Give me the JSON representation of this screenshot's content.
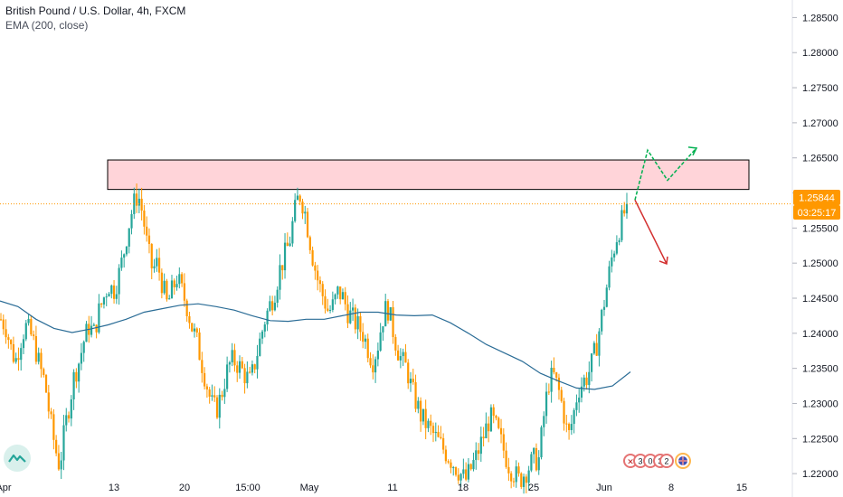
{
  "header": {
    "symbol_title": "British Pound / U.S. Dollar, 4h, FXCM",
    "indicator": "EMA (200, close)"
  },
  "badges": {
    "price": "1.25844",
    "countdown": "03:25:17"
  },
  "events": [
    "3",
    "0",
    "3",
    "2"
  ],
  "colors": {
    "up": "#26a69a",
    "down": "#ff9800",
    "ema": "#2a6c96",
    "zone_fill": "#ffcdd2",
    "price_line": "#ff9800",
    "badge": "#ff9800",
    "green_arrow": "#00b050",
    "red_arrow": "#d32f2f"
  },
  "chart_data": {
    "type": "candlestick",
    "title": "British Pound / U.S. Dollar, 4h, FXCM",
    "ylim": [
      1.2195,
      1.2875
    ],
    "y_ticks": [
      "1.28500",
      "1.28000",
      "1.27500",
      "1.27000",
      "1.26500",
      "1.26000",
      "1.25500",
      "1.25000",
      "1.24500",
      "1.24000",
      "1.23500",
      "1.23000",
      "1.22500",
      "1.22000"
    ],
    "x_ticks": [
      "Apr",
      "13",
      "20",
      "15:00",
      "May",
      "11",
      "18",
      "25",
      "Jun",
      "8",
      "15"
    ],
    "current_price": 1.25844,
    "resistance_zone": [
      1.2605,
      1.2647
    ],
    "grid": false,
    "series": [
      {
        "name": "price",
        "kind": "close_path",
        "values": [
          1.242,
          1.241,
          1.238,
          1.236,
          1.239,
          1.241,
          1.24,
          1.238,
          1.235,
          1.233,
          1.228,
          1.224,
          1.221,
          1.226,
          1.23,
          1.234,
          1.236,
          1.239,
          1.241,
          1.24,
          1.243,
          1.245,
          1.247,
          1.246,
          1.248,
          1.251,
          1.255,
          1.258,
          1.26,
          1.257,
          1.252,
          1.249,
          1.25,
          1.247,
          1.244,
          1.246,
          1.248,
          1.246,
          1.244,
          1.241,
          1.239,
          1.236,
          1.233,
          1.23,
          1.229,
          1.231,
          1.234,
          1.236,
          1.236,
          1.235,
          1.234,
          1.233,
          1.236,
          1.239,
          1.242,
          1.244,
          1.246,
          1.249,
          1.251,
          1.253,
          1.257,
          1.26,
          1.258,
          1.254,
          1.25,
          1.247,
          1.245,
          1.243,
          1.244,
          1.246,
          1.245,
          1.243,
          1.242,
          1.241,
          1.24,
          1.238,
          1.236,
          1.238,
          1.242,
          1.244,
          1.241,
          1.238,
          1.236,
          1.235,
          1.232,
          1.23,
          1.228,
          1.227,
          1.226,
          1.225,
          1.224,
          1.223,
          1.222,
          1.221,
          1.22,
          1.219,
          1.2205,
          1.222,
          1.224,
          1.226,
          1.228,
          1.227,
          1.225,
          1.223,
          1.221,
          1.22,
          1.219,
          1.22,
          1.221,
          1.222,
          1.222,
          1.228,
          1.233,
          1.234,
          1.232,
          1.229,
          1.225,
          1.228,
          1.232,
          1.233,
          1.234,
          1.236,
          1.239,
          1.243,
          1.247,
          1.251,
          1.254,
          1.256,
          1.2584
        ]
      },
      {
        "name": "EMA (200, close)",
        "kind": "ema",
        "values": [
          1.2446,
          1.2438,
          1.242,
          1.2407,
          1.2401,
          1.2406,
          1.2412,
          1.242,
          1.243,
          1.2435,
          1.244,
          1.2442,
          1.2438,
          1.2433,
          1.2425,
          1.2418,
          1.2417,
          1.242,
          1.242,
          1.2425,
          1.243,
          1.243,
          1.2426,
          1.2425,
          1.2426,
          1.2415,
          1.24,
          1.2384,
          1.2372,
          1.236,
          1.2343,
          1.2332,
          1.2322,
          1.232,
          1.2325,
          1.2345
        ]
      }
    ],
    "projections": {
      "up": [
        1.259,
        1.2661,
        1.2618,
        1.2664
      ],
      "down": [
        1.259,
        1.2499
      ]
    }
  }
}
